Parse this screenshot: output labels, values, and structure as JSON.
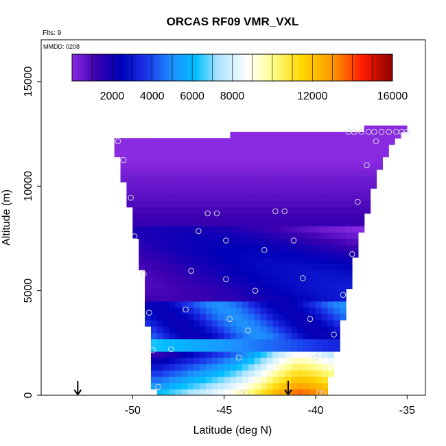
{
  "chart_data": {
    "type": "heatmap",
    "title": "ORCAS RF09 VMR_VXL",
    "annotations": {
      "flights": "Flts: 9",
      "date": "MMDD: 0208"
    },
    "xlabel": "Latitude (deg N)",
    "ylabel": "Altitude (m)",
    "xlim": [
      -55,
      -34
    ],
    "ylim": [
      0,
      17000
    ],
    "xticks": [
      -50,
      -45,
      -40,
      -35
    ],
    "xtick_labels": [
      "-50",
      "-45",
      "-40",
      "-35"
    ],
    "yticks": [
      0,
      5000,
      10000,
      15000
    ],
    "ytick_labels": [
      "0",
      "5000",
      "10000",
      "15000"
    ],
    "colorbar": {
      "min": 0,
      "max": 16000,
      "ticks": [
        2000,
        4000,
        6000,
        8000,
        12000,
        16000
      ],
      "tick_labels": [
        "2000",
        "4000",
        "6000",
        "8000",
        "12000",
        "16000"
      ],
      "stops": [
        {
          "v": 0,
          "c": "#8a2be2"
        },
        {
          "v": 1200,
          "c": "#3c00b0"
        },
        {
          "v": 2400,
          "c": "#0000b8"
        },
        {
          "v": 3600,
          "c": "#1a2ee6"
        },
        {
          "v": 5000,
          "c": "#1e90ff"
        },
        {
          "v": 6200,
          "c": "#00bfff"
        },
        {
          "v": 7300,
          "c": "#aee4ff"
        },
        {
          "v": 8800,
          "c": "#ffffff"
        },
        {
          "v": 10000,
          "c": "#fffe8c"
        },
        {
          "v": 11500,
          "c": "#ffd700"
        },
        {
          "v": 13000,
          "c": "#ff9a00"
        },
        {
          "v": 14500,
          "c": "#ff1a00"
        },
        {
          "v": 16000,
          "c": "#8b0000"
        }
      ]
    },
    "coverage": {
      "lat": [
        -51,
        -50.5,
        -50,
        -49.5,
        -49.2,
        -49,
        -48.8,
        -48,
        -47,
        -46,
        -45,
        -44,
        -43,
        -42,
        -41,
        -40,
        -39.5,
        -39,
        -38.5,
        -38,
        -37.5,
        -37,
        -36.5,
        -36,
        -35.5,
        -35.2
      ],
      "top": [
        12400,
        12400,
        12400,
        12400,
        12400,
        12400,
        12400,
        12400,
        12400,
        12400,
        12400,
        12600,
        12600,
        12600,
        12600,
        12600,
        12600,
        12600,
        12600,
        12600,
        12700,
        12800,
        12800,
        12800,
        12800,
        12800
      ],
      "bottom": [
        12000,
        10300,
        8200,
        6000,
        3600,
        1800,
        0,
        0,
        0,
        0,
        0,
        0,
        0,
        0,
        0,
        0,
        0,
        1500,
        3800,
        6000,
        7800,
        9300,
        10800,
        11700,
        12200,
        12500
      ]
    },
    "field_model": "layered VMR_VXL (ppmv) vs altitude with frontal tilt; surface maximum near -41 deg",
    "flight_samples": [
      {
        "lat": -50.8,
        "alt": 12150
      },
      {
        "lat": -50.5,
        "alt": 11250
      },
      {
        "lat": -50.1,
        "alt": 9450
      },
      {
        "lat": -49.9,
        "alt": 7600
      },
      {
        "lat": -49.4,
        "alt": 5800
      },
      {
        "lat": -49.1,
        "alt": 3950
      },
      {
        "lat": -48.9,
        "alt": 2150
      },
      {
        "lat": -48.6,
        "alt": 400
      },
      {
        "lat": -47.9,
        "alt": 2200
      },
      {
        "lat": -47.1,
        "alt": 4100
      },
      {
        "lat": -46.8,
        "alt": 5950
      },
      {
        "lat": -46.4,
        "alt": 7850
      },
      {
        "lat": -45.9,
        "alt": 8700
      },
      {
        "lat": -45.4,
        "alt": 8700
      },
      {
        "lat": -44.9,
        "alt": 7400
      },
      {
        "lat": -44.9,
        "alt": 5550
      },
      {
        "lat": -44.7,
        "alt": 3650
      },
      {
        "lat": -44.2,
        "alt": 1800
      },
      {
        "lat": -44.0,
        "alt": 100
      },
      {
        "lat": -43.8,
        "alt": 100
      },
      {
        "lat": -43.7,
        "alt": 3100
      },
      {
        "lat": -43.3,
        "alt": 5000
      },
      {
        "lat": -42.8,
        "alt": 6950
      },
      {
        "lat": -42.2,
        "alt": 8800
      },
      {
        "lat": -41.7,
        "alt": 8800
      },
      {
        "lat": -41.2,
        "alt": 7400
      },
      {
        "lat": -40.7,
        "alt": 5600
      },
      {
        "lat": -40.3,
        "alt": 3650
      },
      {
        "lat": -40.0,
        "alt": 1800
      },
      {
        "lat": -39.8,
        "alt": 100
      },
      {
        "lat": -39.6,
        "alt": 100
      },
      {
        "lat": -39.0,
        "alt": 2900
      },
      {
        "lat": -38.5,
        "alt": 4800
      },
      {
        "lat": -38.0,
        "alt": 6750
      },
      {
        "lat": -37.7,
        "alt": 9250
      },
      {
        "lat": -37.2,
        "alt": 11000
      },
      {
        "lat": -36.7,
        "alt": 12150
      },
      {
        "lat": -38.2,
        "alt": 12600
      },
      {
        "lat": -37.9,
        "alt": 12600
      },
      {
        "lat": -37.5,
        "alt": 12600
      },
      {
        "lat": -37.1,
        "alt": 12600
      },
      {
        "lat": -36.8,
        "alt": 12600
      },
      {
        "lat": -36.4,
        "alt": 12600
      },
      {
        "lat": -36.0,
        "alt": 12600
      },
      {
        "lat": -35.6,
        "alt": 12600
      },
      {
        "lat": -35.3,
        "alt": 12600
      },
      {
        "lat": -35.0,
        "alt": 12600
      }
    ],
    "markers": [
      {
        "lat": -53.0,
        "label": "down-arrow"
      },
      {
        "lat": -41.5,
        "label": "down-arrow"
      }
    ]
  }
}
